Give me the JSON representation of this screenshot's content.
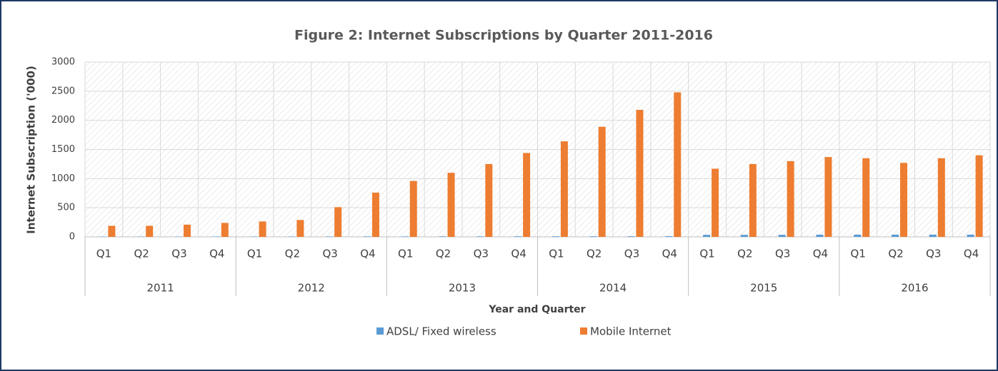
{
  "chart_data": {
    "type": "bar",
    "title": "Figure 2: Internet Subscriptions by Quarter 2011-2016",
    "y_label": "Internet Subscription ('000)",
    "x_label": "Year and Quarter",
    "categories": [
      "Q1",
      "Q2",
      "Q3",
      "Q4",
      "Q1",
      "Q2",
      "Q3",
      "Q4",
      "Q1",
      "Q2",
      "Q3",
      "Q4",
      "Q1",
      "Q2",
      "Q3",
      "Q4",
      "Q1",
      "Q2",
      "Q3",
      "Q4",
      "Q1",
      "Q2",
      "Q3",
      "Q4"
    ],
    "groups": [
      "2011",
      "2012",
      "2013",
      "2014",
      "2015",
      "2016"
    ],
    "series": [
      {
        "name": "ADSL/ Fixed wireless",
        "color": "#5b9bd5",
        "values": [
          5,
          5,
          5,
          6,
          6,
          7,
          7,
          8,
          8,
          9,
          9,
          10,
          10,
          10,
          11,
          12,
          35,
          35,
          35,
          38,
          38,
          38,
          38,
          38
        ]
      },
      {
        "name": "Mobile Internet",
        "color": "#ed7d31",
        "values": [
          190,
          190,
          210,
          240,
          265,
          290,
          510,
          760,
          960,
          1100,
          1250,
          1440,
          1640,
          1890,
          2180,
          2480,
          1170,
          1250,
          1300,
          1370,
          1350,
          1270,
          1350,
          1400
        ]
      }
    ],
    "ylim": [
      0,
      3000
    ],
    "yticks": [
      0,
      500,
      1000,
      1500,
      2000,
      2500,
      3000
    ],
    "grid": true,
    "legend": "bottom"
  }
}
